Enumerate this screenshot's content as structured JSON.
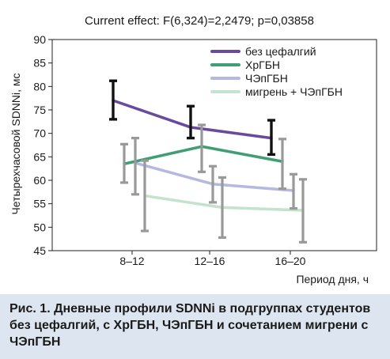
{
  "chart_data": {
    "type": "line",
    "title": "Current effect: F(6,324)=2,2479; p=0,03858",
    "xlabel": "Период дня, ч",
    "ylabel": "Четырехчасовой SDNNi, мс",
    "categories": [
      "8–12",
      "12–16",
      "16–20"
    ],
    "ylim": [
      45,
      90
    ],
    "yticks": [
      45,
      50,
      55,
      60,
      65,
      70,
      75,
      80,
      85,
      90
    ],
    "error_bars": true,
    "legend_position": "top-right",
    "series": [
      {
        "name": "без цефалгий",
        "color": "#6a4a9c",
        "values": [
          77.0,
          71.3,
          69.0
        ],
        "lower": [
          73.0,
          69.0,
          65.5
        ],
        "upper": [
          81.2,
          75.8,
          72.8
        ]
      },
      {
        "name": "ХрГБН",
        "color": "#3f9e74",
        "values": [
          63.5,
          67.2,
          64.0
        ],
        "lower": [
          59.5,
          61.8,
          58.2
        ],
        "upper": [
          67.7,
          71.8,
          68.8
        ]
      },
      {
        "name": "ЧЭпГБН",
        "color": "#b4b9e0",
        "values": [
          63.7,
          59.2,
          57.8
        ],
        "lower": [
          57.0,
          55.3,
          54.0
        ],
        "upper": [
          69.0,
          63.0,
          61.3
        ]
      },
      {
        "name": "мигрень + ЧЭпГБН",
        "color": "#c4e3cc",
        "values": [
          56.7,
          54.2,
          53.6
        ],
        "lower": [
          49.2,
          47.8,
          46.8
        ],
        "upper": [
          64.2,
          60.6,
          60.2
        ]
      }
    ]
  },
  "caption": "Рис. 1. Дневные профили SDNNi в подгруппах студентов без цефалгий, с ХрГБН, ЧЭпГБН и сочетанием мигрени с ЧЭпГБН"
}
